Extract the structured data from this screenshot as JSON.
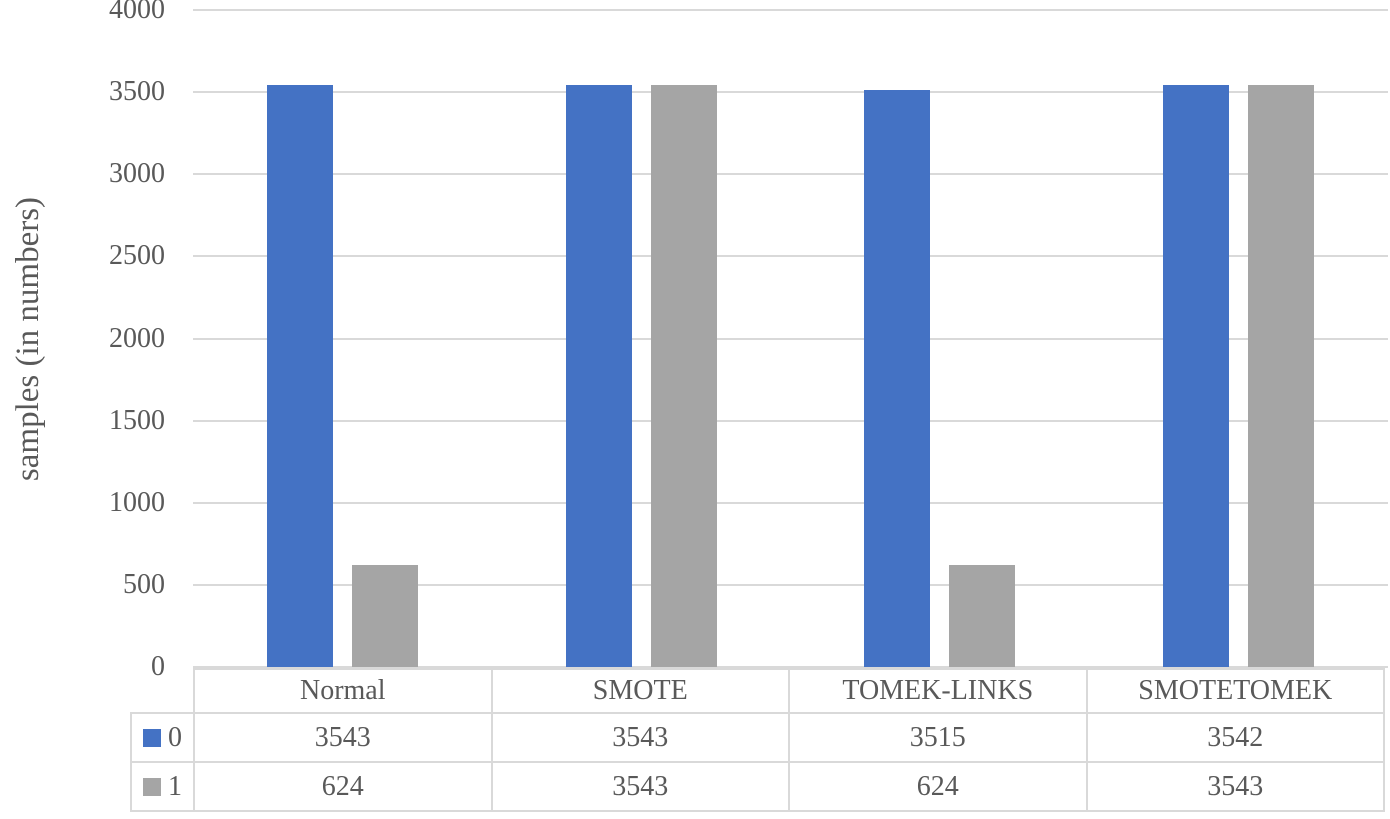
{
  "chart_data": {
    "type": "bar",
    "title": "",
    "xlabel": "",
    "ylabel": "samples (in numbers)",
    "categories": [
      "Normal",
      "SMOTE",
      "TOMEK-LINKS",
      "SMOTETOMEK"
    ],
    "series": [
      {
        "name": "0",
        "color": "#4472C4",
        "values": [
          3543,
          3543,
          3515,
          3542
        ]
      },
      {
        "name": "1",
        "color": "#A5A5A5",
        "values": [
          624,
          3543,
          624,
          3543
        ]
      }
    ],
    "ylim": [
      0,
      4000
    ],
    "yticks": [
      0,
      500,
      1000,
      1500,
      2000,
      2500,
      3000,
      3500,
      4000
    ],
    "grid": true,
    "legend_position": "table-left",
    "data_table": true
  },
  "colors": {
    "grid": "#D9D9D9",
    "table_border": "#D9D9D9",
    "text": "#595959",
    "background": "#FFFFFF"
  }
}
